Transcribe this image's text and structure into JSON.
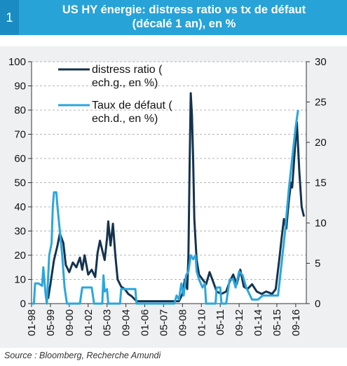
{
  "header": {
    "number": "1",
    "title_line1": "US HY énergie: distress ratio vs tx de défaut",
    "title_line2": "(décalé 1 an), en %"
  },
  "source": "Source : Bloomberg, Recherche Amundi",
  "chart_data": {
    "type": "line",
    "title": "US HY énergie: distress ratio vs tx de défaut (décalé 1 an), en %",
    "xlabel": "",
    "ylabel_left": "",
    "ylabel_right": "",
    "x_tick_labels": [
      "01-98",
      "05-99",
      "09-00",
      "01-02",
      "05-03",
      "09-04",
      "01-06",
      "05-07",
      "09-08",
      "01-10",
      "05-11",
      "09-12",
      "01-14",
      "05-15",
      "09-16"
    ],
    "x_range": [
      "1998-01",
      "2017-06"
    ],
    "ylim_left": [
      0,
      100
    ],
    "yticks_left": [
      0,
      10,
      20,
      30,
      40,
      50,
      60,
      70,
      80,
      90,
      100
    ],
    "ylim_right": [
      0,
      30
    ],
    "yticks_right": [
      0,
      5,
      10,
      15,
      20,
      25,
      30
    ],
    "grid": "horizontal dashed",
    "legend_position": "top-left",
    "series": [
      {
        "name": "distress ratio (ech.g., en %)",
        "axis": "left",
        "color": "#14334f",
        "points": [
          [
            "1999-03",
            2
          ],
          [
            "1999-05",
            8
          ],
          [
            "1999-08",
            18
          ],
          [
            "1999-11",
            24
          ],
          [
            "2000-01",
            29
          ],
          [
            "2000-04",
            25
          ],
          [
            "2000-06",
            16
          ],
          [
            "2000-09",
            13
          ],
          [
            "2000-12",
            17
          ],
          [
            "2001-03",
            15
          ],
          [
            "2001-06",
            19
          ],
          [
            "2001-08",
            14
          ],
          [
            "2001-10",
            20
          ],
          [
            "2002-01",
            12
          ],
          [
            "2002-04",
            14
          ],
          [
            "2002-07",
            11
          ],
          [
            "2002-09",
            21
          ],
          [
            "2002-11",
            26
          ],
          [
            "2003-01",
            22
          ],
          [
            "2003-03",
            18
          ],
          [
            "2003-05",
            27
          ],
          [
            "2003-06",
            34
          ],
          [
            "2003-08",
            24
          ],
          [
            "2003-10",
            33
          ],
          [
            "2003-12",
            20
          ],
          [
            "2004-02",
            10
          ],
          [
            "2004-05",
            7
          ],
          [
            "2004-08",
            6
          ],
          [
            "2004-11",
            4
          ],
          [
            "2005-02",
            3
          ],
          [
            "2005-06",
            1
          ],
          [
            "2006-01",
            1
          ],
          [
            "2007-01",
            1
          ],
          [
            "2008-01",
            1
          ],
          [
            "2008-06",
            1
          ],
          [
            "2008-09",
            4
          ],
          [
            "2008-11",
            10
          ],
          [
            "2009-01",
            6
          ],
          [
            "2009-02",
            20
          ],
          [
            "2009-03",
            55
          ],
          [
            "2009-04",
            87
          ],
          [
            "2009-05",
            78
          ],
          [
            "2009-06",
            60
          ],
          [
            "2009-07",
            35
          ],
          [
            "2009-09",
            18
          ],
          [
            "2009-11",
            12
          ],
          [
            "2010-02",
            10
          ],
          [
            "2010-05",
            8
          ],
          [
            "2010-08",
            13
          ],
          [
            "2010-11",
            9
          ],
          [
            "2011-02",
            5
          ],
          [
            "2011-06",
            4
          ],
          [
            "2011-10",
            5
          ],
          [
            "2012-01",
            9
          ],
          [
            "2012-04",
            12
          ],
          [
            "2012-07",
            8
          ],
          [
            "2012-10",
            14
          ],
          [
            "2013-01",
            7
          ],
          [
            "2013-04",
            6
          ],
          [
            "2013-08",
            8
          ],
          [
            "2013-12",
            5
          ],
          [
            "2014-04",
            4
          ],
          [
            "2014-08",
            5
          ],
          [
            "2015-01",
            4
          ],
          [
            "2015-04",
            6
          ],
          [
            "2015-07",
            18
          ],
          [
            "2015-09",
            27
          ],
          [
            "2015-11",
            35
          ],
          [
            "2016-01",
            31
          ],
          [
            "2016-03",
            42
          ],
          [
            "2016-05",
            50
          ],
          [
            "2016-06",
            48
          ],
          [
            "2016-08",
            62
          ],
          [
            "2016-10",
            75
          ],
          [
            "2016-12",
            55
          ],
          [
            "2017-02",
            40
          ],
          [
            "2017-04",
            36
          ]
        ]
      },
      {
        "name": "Taux de défaut (ech.d., en %)",
        "axis": "right",
        "color": "#2ba6dc",
        "points": [
          [
            "1998-01",
            0
          ],
          [
            "1998-03",
            0
          ],
          [
            "1998-04",
            2.5
          ],
          [
            "1998-07",
            2.5
          ],
          [
            "1998-10",
            2.2
          ],
          [
            "1998-11",
            4.5
          ],
          [
            "1999-01",
            1
          ],
          [
            "1999-02",
            0
          ],
          [
            "1999-04",
            6
          ],
          [
            "1999-06",
            7.5
          ],
          [
            "1999-07",
            12
          ],
          [
            "1999-08",
            13.8
          ],
          [
            "1999-10",
            13.8
          ],
          [
            "1999-11",
            12
          ],
          [
            "2000-01",
            9
          ],
          [
            "2000-03",
            6
          ],
          [
            "2000-05",
            2
          ],
          [
            "2000-07",
            0
          ],
          [
            "2001-06",
            0
          ],
          [
            "2001-08",
            2
          ],
          [
            "2002-04",
            2
          ],
          [
            "2002-06",
            0
          ],
          [
            "2003-01",
            0
          ],
          [
            "2003-02",
            3.5
          ],
          [
            "2003-03",
            1.5
          ],
          [
            "2003-05",
            1.8
          ],
          [
            "2003-06",
            0
          ],
          [
            "2004-04",
            0
          ],
          [
            "2004-05",
            1.8
          ],
          [
            "2005-02",
            1.8
          ],
          [
            "2005-05",
            1.8
          ],
          [
            "2005-06",
            0
          ],
          [
            "2008-02",
            0
          ],
          [
            "2008-04",
            1
          ],
          [
            "2008-06",
            0.5
          ],
          [
            "2008-08",
            2.5
          ],
          [
            "2008-10",
            1
          ],
          [
            "2008-12",
            3.5
          ],
          [
            "2009-02",
            4
          ],
          [
            "2009-04",
            6
          ],
          [
            "2009-06",
            5.5
          ],
          [
            "2009-08",
            6
          ],
          [
            "2009-09",
            4
          ],
          [
            "2009-11",
            3
          ],
          [
            "2010-02",
            2
          ],
          [
            "2010-04",
            2.5
          ],
          [
            "2010-05",
            0
          ],
          [
            "2011-01",
            0
          ],
          [
            "2011-02",
            2
          ],
          [
            "2011-05",
            2
          ],
          [
            "2011-06",
            0
          ],
          [
            "2011-10",
            0
          ],
          [
            "2012-01",
            3
          ],
          [
            "2012-04",
            3
          ],
          [
            "2012-06",
            2
          ],
          [
            "2012-09",
            4
          ],
          [
            "2012-12",
            3.5
          ],
          [
            "2013-03",
            2
          ],
          [
            "2013-08",
            0.5
          ],
          [
            "2014-01",
            0.5
          ],
          [
            "2014-05",
            1
          ],
          [
            "2014-10",
            1
          ],
          [
            "2015-02",
            1
          ],
          [
            "2015-06",
            1
          ],
          [
            "2015-09",
            5
          ],
          [
            "2015-12",
            9
          ],
          [
            "2016-03",
            14
          ],
          [
            "2016-06",
            18
          ],
          [
            "2016-09",
            22
          ],
          [
            "2016-11",
            24
          ]
        ]
      }
    ]
  }
}
